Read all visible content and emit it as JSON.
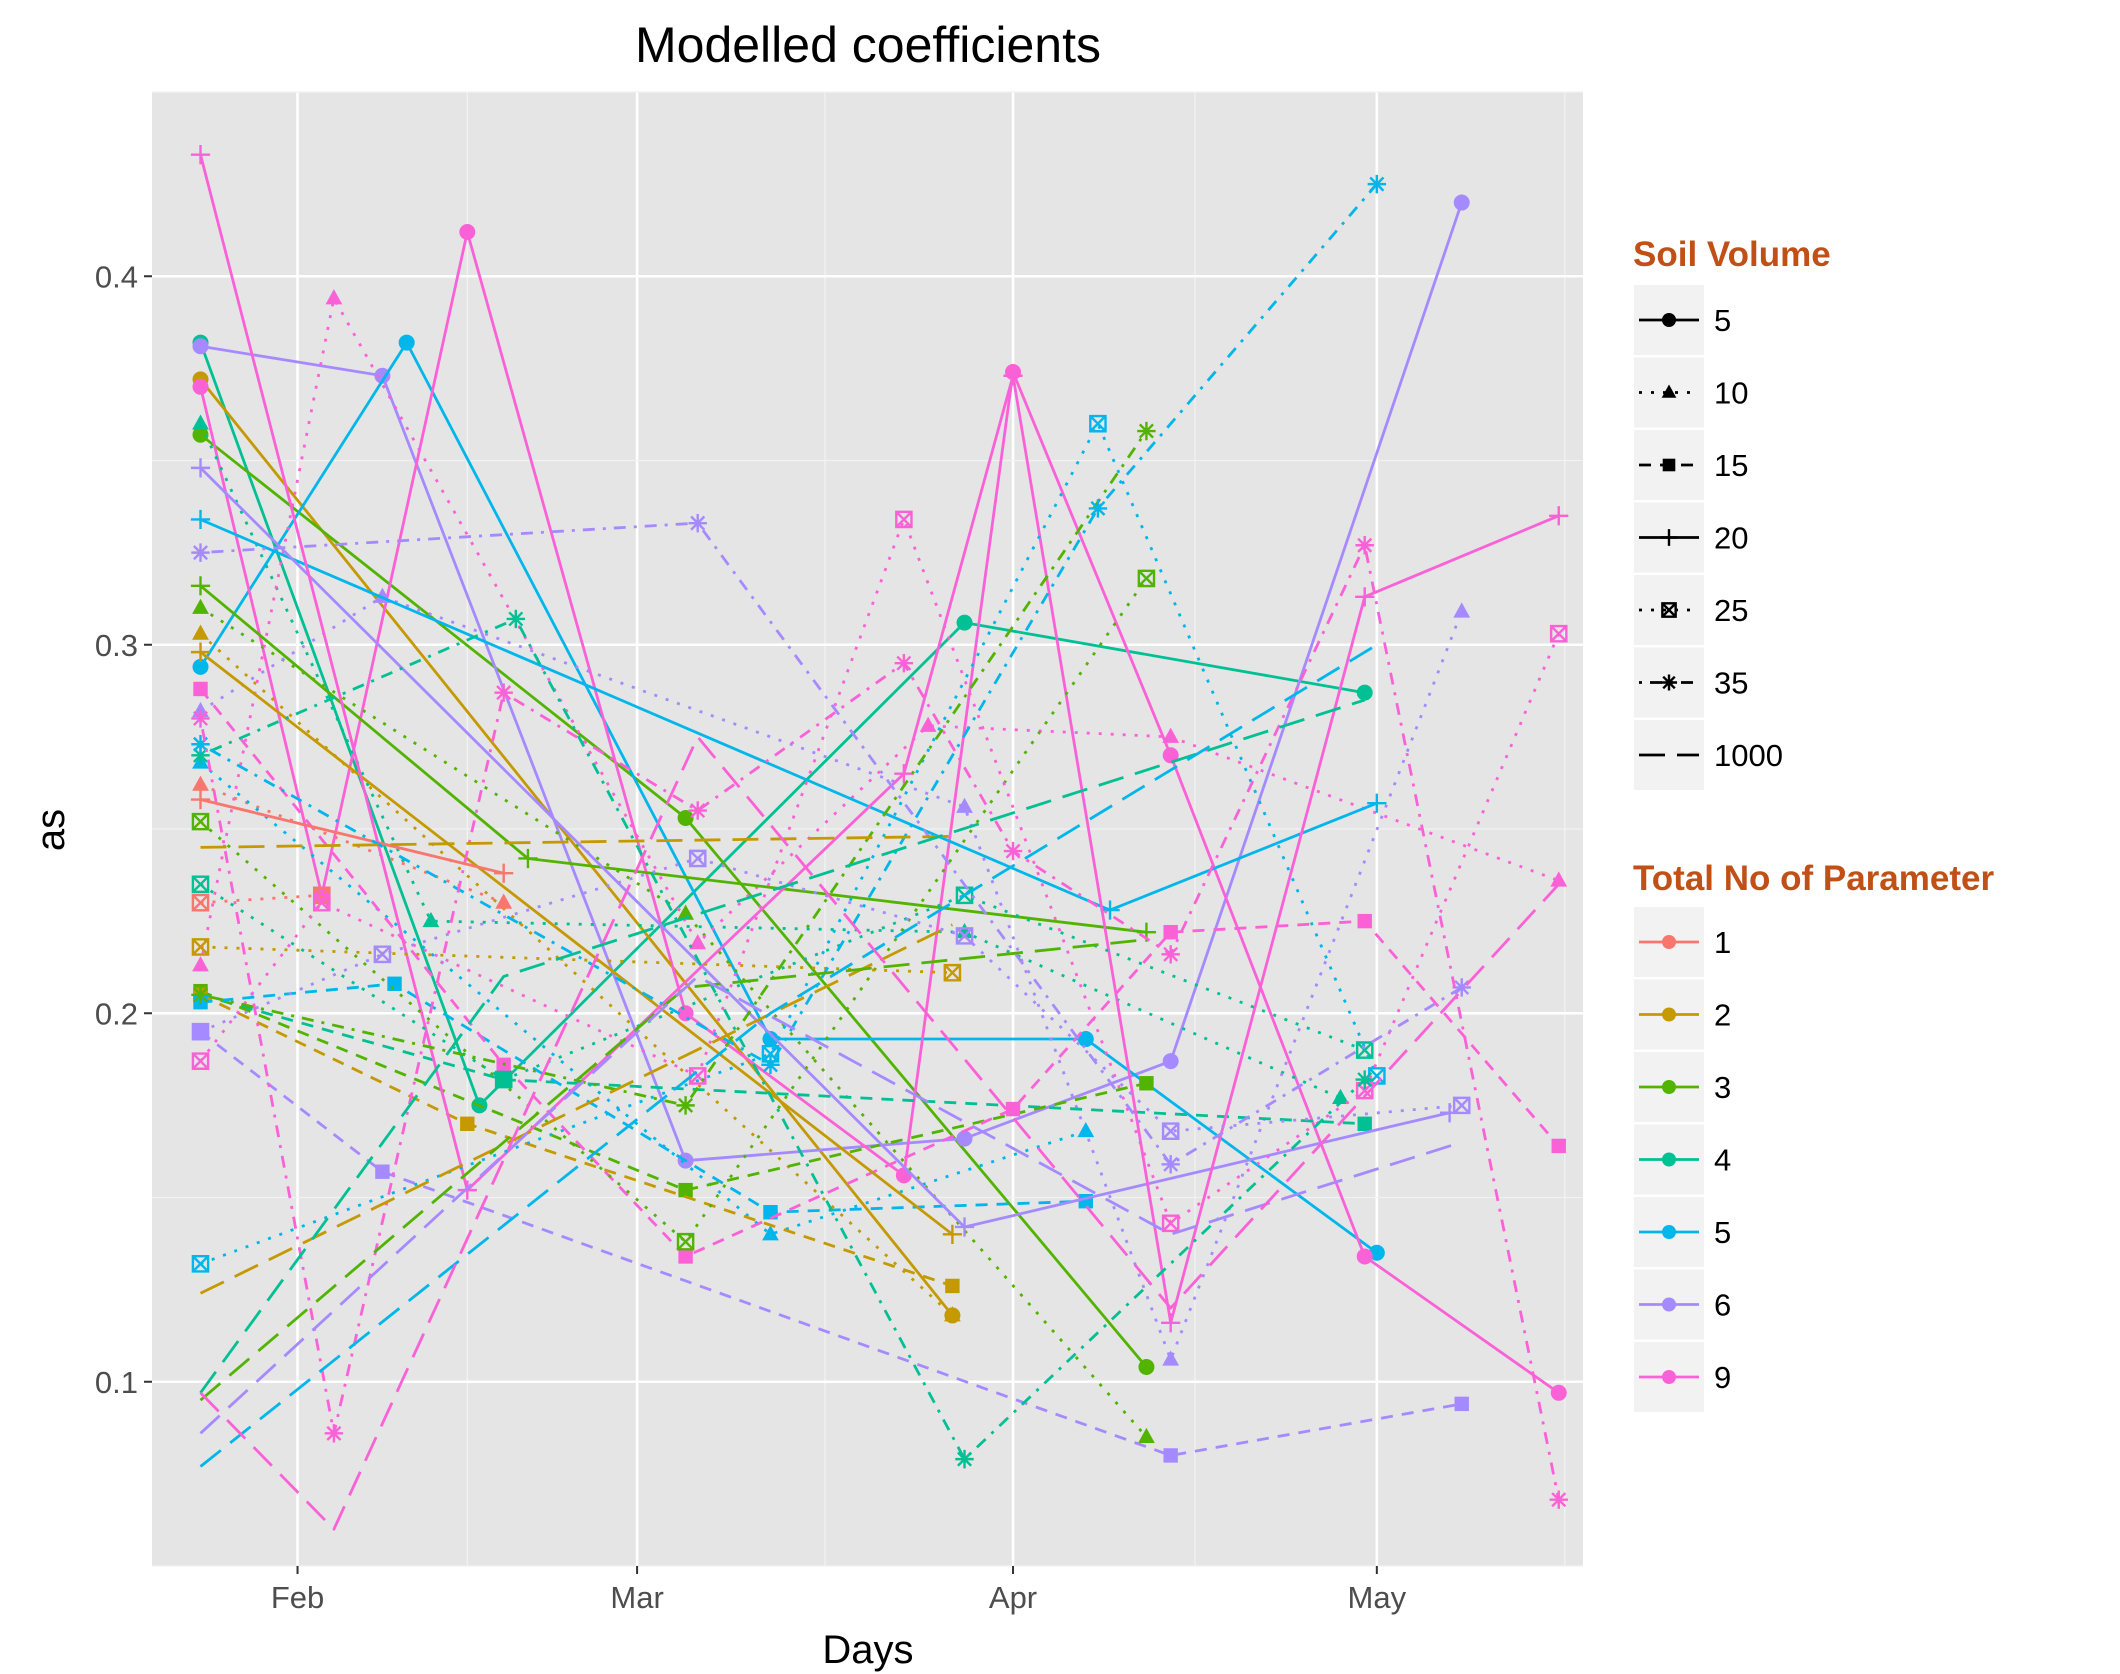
{
  "chart_data": {
    "type": "line",
    "title": "Modelled coefficients",
    "xlabel": "Days",
    "ylabel": "as",
    "x_ticks": [
      "Feb",
      "Mar",
      "Apr",
      "May"
    ],
    "y_ticks": [
      "0.1",
      "0.2",
      "0.3",
      "0.4"
    ],
    "xlim": [
      "2017-01-20",
      "2017-05-18"
    ],
    "ylim": [
      0.05,
      0.45
    ],
    "grid": true,
    "legend_position": "right",
    "soil_volume_legend": {
      "title": "Soil Volume",
      "items": [
        {
          "label": "5",
          "shape": "circle",
          "dash": "solid"
        },
        {
          "label": "10",
          "shape": "triangle",
          "dash": "dotted"
        },
        {
          "label": "15",
          "shape": "square",
          "dash": "dashed"
        },
        {
          "label": "20",
          "shape": "plus",
          "dash": "solid"
        },
        {
          "label": "25",
          "shape": "boxx",
          "dash": "dotted"
        },
        {
          "label": "35",
          "shape": "asterisk",
          "dash": "dotdash"
        },
        {
          "label": "1000",
          "shape": "none",
          "dash": "longdash"
        }
      ]
    },
    "parameter_legend": {
      "title": "Total No of Parameter",
      "items": [
        {
          "label": "1",
          "color": "#F8766D"
        },
        {
          "label": "2",
          "color": "#C49A00"
        },
        {
          "label": "3",
          "color": "#53B400"
        },
        {
          "label": "4",
          "color": "#00C094"
        },
        {
          "label": "5",
          "color": "#00B6EB"
        },
        {
          "label": "6",
          "color": "#A58AFF"
        },
        {
          "label": "9",
          "color": "#FB61D7"
        }
      ]
    },
    "series": [
      {
        "color": "#00C094",
        "shape": "circle",
        "dash": "solid",
        "points": [
          [
            "2017-01-24",
            0.382
          ],
          [
            "2017-02-16",
            0.175
          ],
          [
            "2017-03-28",
            0.306
          ],
          [
            "2017-04-30",
            0.287
          ]
        ]
      },
      {
        "color": "#C49A00",
        "shape": "circle",
        "dash": "solid",
        "points": [
          [
            "2017-01-24",
            0.372
          ],
          [
            "2017-03-27",
            0.118
          ]
        ]
      },
      {
        "color": "#53B400",
        "shape": "circle",
        "dash": "solid",
        "points": [
          [
            "2017-01-24",
            0.357
          ],
          [
            "2017-03-05",
            0.253
          ],
          [
            "2017-04-12",
            0.104
          ]
        ]
      },
      {
        "color": "#A58AFF",
        "shape": "circle",
        "dash": "solid",
        "points": [
          [
            "2017-01-24",
            0.381
          ],
          [
            "2017-02-08",
            0.373
          ],
          [
            "2017-03-05",
            0.16
          ],
          [
            "2017-03-28",
            0.166
          ],
          [
            "2017-04-14",
            0.187
          ],
          [
            "2017-05-08",
            0.42
          ]
        ]
      },
      {
        "color": "#00B6EB",
        "shape": "circle",
        "dash": "solid",
        "points": [
          [
            "2017-01-24",
            0.294
          ],
          [
            "2017-02-10",
            0.382
          ],
          [
            "2017-03-12",
            0.193
          ],
          [
            "2017-04-07",
            0.193
          ],
          [
            "2017-05-01",
            0.135
          ]
        ]
      },
      {
        "color": "#FB61D7",
        "shape": "circle",
        "dash": "solid",
        "points": [
          [
            "2017-01-24",
            0.37
          ],
          [
            "2017-02-03",
            0.232
          ],
          [
            "2017-02-15",
            0.412
          ],
          [
            "2017-03-05",
            0.2
          ],
          [
            "2017-03-23",
            0.156
          ],
          [
            "2017-04-01",
            0.374
          ],
          [
            "2017-04-14",
            0.27
          ],
          [
            "2017-04-30",
            0.134
          ],
          [
            "2017-05-16",
            0.097
          ]
        ]
      },
      {
        "color": "#00C094",
        "shape": "triangle",
        "dash": "dotted",
        "points": [
          [
            "2017-01-24",
            0.36
          ],
          [
            "2017-02-12",
            0.225
          ],
          [
            "2017-03-28",
            0.222
          ],
          [
            "2017-04-28",
            0.177
          ]
        ]
      },
      {
        "color": "#53B400",
        "shape": "triangle",
        "dash": "dotted",
        "points": [
          [
            "2017-01-24",
            0.31
          ],
          [
            "2017-03-05",
            0.227
          ],
          [
            "2017-04-12",
            0.085
          ]
        ]
      },
      {
        "color": "#C49A00",
        "shape": "triangle",
        "dash": "dotted",
        "points": [
          [
            "2017-01-24",
            0.303
          ],
          [
            "2017-03-27",
            0.118
          ]
        ]
      },
      {
        "color": "#FB61D7",
        "shape": "triangle",
        "dash": "dotted",
        "points": [
          [
            "2017-01-24",
            0.213
          ],
          [
            "2017-02-04",
            0.394
          ],
          [
            "2017-03-06",
            0.219
          ],
          [
            "2017-03-25",
            0.278
          ],
          [
            "2017-04-14",
            0.275
          ],
          [
            "2017-05-16",
            0.236
          ]
        ]
      },
      {
        "color": "#A58AFF",
        "shape": "triangle",
        "dash": "dotted",
        "points": [
          [
            "2017-01-24",
            0.282
          ],
          [
            "2017-02-08",
            0.313
          ],
          [
            "2017-03-28",
            0.256
          ],
          [
            "2017-04-14",
            0.106
          ],
          [
            "2017-05-08",
            0.309
          ]
        ]
      },
      {
        "color": "#F8766D",
        "shape": "triangle",
        "dash": "dotted",
        "points": [
          [
            "2017-01-24",
            0.262
          ],
          [
            "2017-02-18",
            0.23
          ]
        ]
      },
      {
        "color": "#00B6EB",
        "shape": "triangle",
        "dash": "dotted",
        "points": [
          [
            "2017-01-24",
            0.268
          ],
          [
            "2017-03-12",
            0.14
          ],
          [
            "2017-04-07",
            0.168
          ]
        ]
      },
      {
        "color": "#00C094",
        "shape": "square",
        "dash": "dashed",
        "points": [
          [
            "2017-01-24",
            0.205
          ],
          [
            "2017-02-18",
            0.182
          ],
          [
            "2017-04-30",
            0.17
          ]
        ]
      },
      {
        "color": "#53B400",
        "shape": "square",
        "dash": "dashed",
        "points": [
          [
            "2017-01-24",
            0.206
          ],
          [
            "2017-03-05",
            0.152
          ],
          [
            "2017-04-12",
            0.181
          ]
        ]
      },
      {
        "color": "#C49A00",
        "shape": "square",
        "dash": "dashed",
        "points": [
          [
            "2017-01-24",
            0.205
          ],
          [
            "2017-02-15",
            0.17
          ],
          [
            "2017-03-27",
            0.126
          ]
        ]
      },
      {
        "color": "#00B6EB",
        "shape": "square",
        "dash": "dashed",
        "points": [
          [
            "2017-01-24",
            0.203
          ],
          [
            "2017-02-09",
            0.208
          ],
          [
            "2017-03-12",
            0.146
          ],
          [
            "2017-04-07",
            0.149
          ]
        ]
      },
      {
        "color": "#A58AFF",
        "shape": "square",
        "dash": "dashed",
        "points": [
          [
            "2017-01-24",
            0.195
          ],
          [
            "2017-02-08",
            0.157
          ],
          [
            "2017-04-14",
            0.08
          ],
          [
            "2017-05-08",
            0.094
          ]
        ]
      },
      {
        "color": "#FB61D7",
        "shape": "square",
        "dash": "dashed",
        "points": [
          [
            "2017-01-24",
            0.288
          ],
          [
            "2017-02-18",
            0.186
          ],
          [
            "2017-03-05",
            0.134
          ],
          [
            "2017-04-01",
            0.174
          ],
          [
            "2017-04-14",
            0.222
          ],
          [
            "2017-04-30",
            0.225
          ],
          [
            "2017-05-16",
            0.164
          ]
        ]
      },
      {
        "color": "#00B6EB",
        "shape": "plus",
        "dash": "solid",
        "points": [
          [
            "2017-01-24",
            0.334
          ],
          [
            "2017-04-09",
            0.228
          ],
          [
            "2017-05-01",
            0.257
          ]
        ]
      },
      {
        "color": "#53B400",
        "shape": "plus",
        "dash": "solid",
        "points": [
          [
            "2017-01-24",
            0.316
          ],
          [
            "2017-02-20",
            0.242
          ],
          [
            "2017-04-12",
            0.222
          ]
        ]
      },
      {
        "color": "#C49A00",
        "shape": "plus",
        "dash": "solid",
        "points": [
          [
            "2017-01-24",
            0.298
          ],
          [
            "2017-03-27",
            0.14
          ]
        ]
      },
      {
        "color": "#F8766D",
        "shape": "plus",
        "dash": "solid",
        "points": [
          [
            "2017-01-24",
            0.258
          ],
          [
            "2017-02-18",
            0.238
          ]
        ]
      },
      {
        "color": "#A58AFF",
        "shape": "plus",
        "dash": "solid",
        "points": [
          [
            "2017-01-24",
            0.348
          ],
          [
            "2017-03-28",
            0.142
          ],
          [
            "2017-05-07",
            0.173
          ]
        ]
      },
      {
        "color": "#FB61D7",
        "shape": "plus",
        "dash": "solid",
        "points": [
          [
            "2017-01-24",
            0.433
          ],
          [
            "2017-02-15",
            0.152
          ],
          [
            "2017-03-23",
            0.265
          ],
          [
            "2017-04-01",
            0.373
          ],
          [
            "2017-04-14",
            0.116
          ],
          [
            "2017-04-30",
            0.313
          ],
          [
            "2017-05-16",
            0.335
          ]
        ]
      },
      {
        "color": "#00B6EB",
        "shape": "boxx",
        "dash": "dotted",
        "points": [
          [
            "2017-01-24",
            0.132
          ],
          [
            "2017-03-12",
            0.189
          ],
          [
            "2017-04-08",
            0.36
          ],
          [
            "2017-05-01",
            0.183
          ]
        ]
      },
      {
        "color": "#53B400",
        "shape": "boxx",
        "dash": "dotted",
        "points": [
          [
            "2017-01-24",
            0.252
          ],
          [
            "2017-03-05",
            0.138
          ],
          [
            "2017-04-12",
            0.318
          ]
        ]
      },
      {
        "color": "#C49A00",
        "shape": "boxx",
        "dash": "dotted",
        "points": [
          [
            "2017-01-24",
            0.218
          ],
          [
            "2017-03-27",
            0.211
          ]
        ]
      },
      {
        "color": "#00C094",
        "shape": "boxx",
        "dash": "dotted",
        "points": [
          [
            "2017-01-24",
            0.235
          ],
          [
            "2017-02-18",
            0.182
          ],
          [
            "2017-03-28",
            0.232
          ],
          [
            "2017-04-30",
            0.19
          ]
        ]
      },
      {
        "color": "#F8766D",
        "shape": "boxx",
        "dash": "dotted",
        "points": [
          [
            "2017-01-24",
            0.23
          ],
          [
            "2017-02-03",
            0.232
          ]
        ]
      },
      {
        "color": "#A58AFF",
        "shape": "boxx",
        "dash": "dotted",
        "points": [
          [
            "2017-01-24",
            0.195
          ],
          [
            "2017-02-08",
            0.216
          ],
          [
            "2017-03-06",
            0.242
          ],
          [
            "2017-03-28",
            0.221
          ],
          [
            "2017-04-14",
            0.168
          ],
          [
            "2017-05-08",
            0.175
          ]
        ]
      },
      {
        "color": "#FB61D7",
        "shape": "boxx",
        "dash": "dotted",
        "points": [
          [
            "2017-01-24",
            0.187
          ],
          [
            "2017-02-03",
            0.23
          ],
          [
            "2017-03-06",
            0.183
          ],
          [
            "2017-03-23",
            0.334
          ],
          [
            "2017-04-14",
            0.143
          ],
          [
            "2017-04-30",
            0.179
          ],
          [
            "2017-05-16",
            0.303
          ]
        ]
      },
      {
        "color": "#00C094",
        "shape": "asterisk",
        "dash": "dotdash",
        "points": [
          [
            "2017-01-24",
            0.27
          ],
          [
            "2017-02-19",
            0.307
          ],
          [
            "2017-03-28",
            0.079
          ],
          [
            "2017-04-30",
            0.182
          ]
        ]
      },
      {
        "color": "#53B400",
        "shape": "asterisk",
        "dash": "dotdash",
        "points": [
          [
            "2017-01-24",
            0.205
          ],
          [
            "2017-03-05",
            0.175
          ],
          [
            "2017-04-12",
            0.358
          ]
        ]
      },
      {
        "color": "#00B6EB",
        "shape": "asterisk",
        "dash": "dotdash",
        "points": [
          [
            "2017-01-24",
            0.273
          ],
          [
            "2017-03-12",
            0.186
          ],
          [
            "2017-04-08",
            0.337
          ],
          [
            "2017-05-01",
            0.425
          ]
        ]
      },
      {
        "color": "#A58AFF",
        "shape": "asterisk",
        "dash": "dotdash",
        "points": [
          [
            "2017-01-24",
            0.325
          ],
          [
            "2017-03-06",
            0.333
          ],
          [
            "2017-04-14",
            0.159
          ],
          [
            "2017-05-08",
            0.207
          ]
        ]
      },
      {
        "color": "#FB61D7",
        "shape": "asterisk",
        "dash": "dotdash",
        "points": [
          [
            "2017-01-24",
            0.28
          ],
          [
            "2017-02-04",
            0.086
          ],
          [
            "2017-02-18",
            0.287
          ],
          [
            "2017-03-06",
            0.255
          ],
          [
            "2017-03-23",
            0.295
          ],
          [
            "2017-04-01",
            0.244
          ],
          [
            "2017-04-14",
            0.216
          ],
          [
            "2017-04-30",
            0.327
          ],
          [
            "2017-05-16",
            0.068
          ]
        ]
      },
      {
        "color": "#C49A00",
        "shape": "none",
        "dash": "longdash",
        "points": [
          [
            "2017-01-24",
            0.124
          ],
          [
            "2017-03-27",
            0.224
          ]
        ]
      },
      {
        "color": "#C49A00",
        "shape": "none",
        "dash": "longdash",
        "points": [
          [
            "2017-01-24",
            0.245
          ],
          [
            "2017-03-27",
            0.248
          ]
        ]
      },
      {
        "color": "#53B400",
        "shape": "none",
        "dash": "longdash",
        "points": [
          [
            "2017-01-24",
            0.095
          ],
          [
            "2017-03-05",
            0.207
          ],
          [
            "2017-04-12",
            0.22
          ]
        ]
      },
      {
        "color": "#00C094",
        "shape": "none",
        "dash": "longdash",
        "points": [
          [
            "2017-01-24",
            0.097
          ],
          [
            "2017-02-18",
            0.21
          ],
          [
            "2017-04-30",
            0.285
          ]
        ]
      },
      {
        "color": "#00B6EB",
        "shape": "none",
        "dash": "longdash",
        "points": [
          [
            "2017-01-24",
            0.077
          ],
          [
            "2017-03-12",
            0.2
          ],
          [
            "2017-05-01",
            0.3
          ]
        ]
      },
      {
        "color": "#A58AFF",
        "shape": "none",
        "dash": "longdash",
        "points": [
          [
            "2017-01-24",
            0.086
          ],
          [
            "2017-03-06",
            0.21
          ],
          [
            "2017-04-14",
            0.14
          ],
          [
            "2017-05-08",
            0.165
          ]
        ]
      },
      {
        "color": "#FB61D7",
        "shape": "none",
        "dash": "longdash",
        "points": [
          [
            "2017-01-24",
            0.097
          ],
          [
            "2017-02-04",
            0.06
          ],
          [
            "2017-03-06",
            0.275
          ],
          [
            "2017-04-14",
            0.12
          ],
          [
            "2017-05-16",
            0.235
          ]
        ]
      }
    ]
  }
}
